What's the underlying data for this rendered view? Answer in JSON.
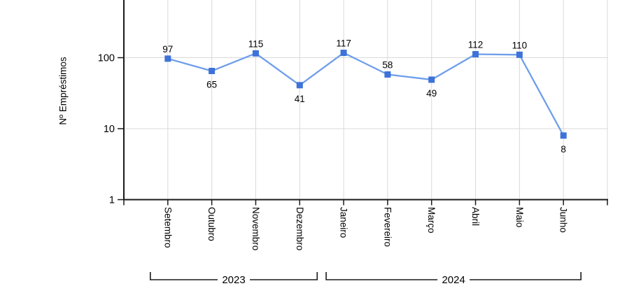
{
  "chart_data": {
    "type": "line",
    "title": "",
    "xlabel": "",
    "ylabel": "Nº Empréstimos",
    "y_scale": "log",
    "y_ticks": [
      1,
      10,
      100
    ],
    "grid": true,
    "legend": "none",
    "categories": [
      "Setembro",
      "Outubro",
      "Novembro",
      "Dezembro",
      "Janeiro",
      "Fevereiro",
      "Março",
      "Abril",
      "Maio",
      "Junho"
    ],
    "series": [
      {
        "values": [
          97,
          65,
          115,
          41,
          117,
          58,
          49,
          112,
          110,
          8
        ],
        "label_positions": [
          "above",
          "below",
          "above",
          "below",
          "above",
          "above",
          "below",
          "above",
          "above",
          "below"
        ]
      }
    ],
    "x_groups": [
      {
        "label": "2023",
        "start": 0,
        "end": 3
      },
      {
        "label": "2024",
        "start": 4,
        "end": 9
      }
    ],
    "colors": {
      "line": "#6f9eea",
      "marker": "#3e72d9",
      "grid": "#d9d9d9",
      "axis": "#1a1a1a",
      "text": "#000000"
    }
  }
}
